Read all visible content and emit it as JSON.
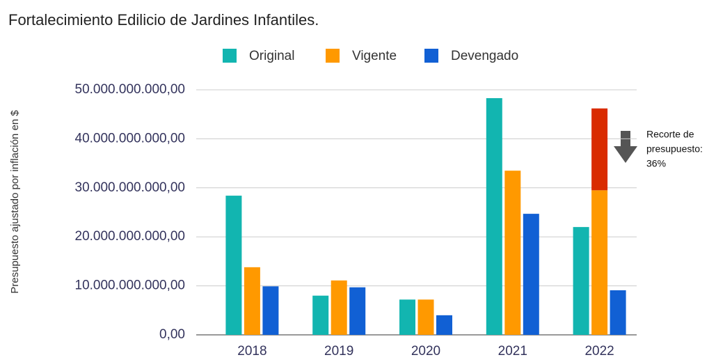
{
  "chart_data": {
    "type": "bar",
    "title": "Fortalecimiento Edilicio de Jardines Infantiles.",
    "y_label": "Presupuesto ajustado por inflación en $",
    "categories": [
      "2018",
      "2019",
      "2020",
      "2021",
      "2022"
    ],
    "series": [
      {
        "name": "Original",
        "color": "#12b5b0",
        "values": [
          28400000000,
          8000000000,
          7200000000,
          48300000000,
          22000000000
        ]
      },
      {
        "name": "Vigente",
        "color": "#ff9900",
        "values": [
          13800000000,
          11100000000,
          7200000000,
          33500000000,
          29500000000
        ]
      },
      {
        "name": "Devengado",
        "color": "#1160d4",
        "values": [
          9900000000,
          9700000000,
          4000000000,
          24700000000,
          9100000000
        ]
      },
      {
        "stack_on": "Vigente",
        "color": "#d92b00",
        "values": [
          null,
          null,
          null,
          null,
          16700000000
        ]
      }
    ],
    "ylim": [
      0,
      50000000000
    ],
    "yticks": [
      {
        "value": 0,
        "label": "0,00"
      },
      {
        "value": 10000000000,
        "label": "10.000.000.000,00"
      },
      {
        "value": 20000000000,
        "label": "20.000.000.000,00"
      },
      {
        "value": 30000000000,
        "label": "30.000.000.000,00"
      },
      {
        "value": 40000000000,
        "label": "40.000.000.000,00"
      },
      {
        "value": 50000000000,
        "label": "50.000.000.000,00"
      }
    ],
    "grid": true,
    "legend": "top",
    "annotation": [
      "Recorte de",
      "presupuesto:",
      "36%"
    ]
  }
}
